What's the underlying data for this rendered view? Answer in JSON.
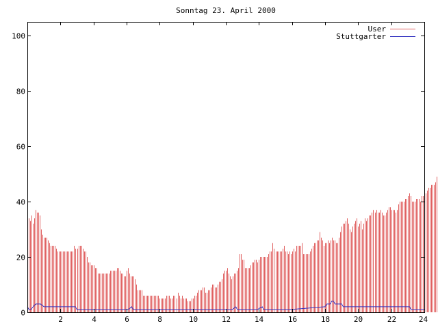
{
  "chart_data": {
    "type": "bar",
    "title": "Sonntag 23. April 2000",
    "xlabel": "",
    "ylabel": "",
    "xlim": [
      0,
      24
    ],
    "ylim": [
      0,
      105
    ],
    "x_ticks": [
      2,
      4,
      6,
      8,
      10,
      12,
      14,
      16,
      18,
      20,
      22,
      24
    ],
    "x_tick_labels": [
      "2",
      "4",
      "6",
      "8",
      "10",
      "12",
      "14",
      "16",
      "18",
      "20",
      "22",
      "24"
    ],
    "y_ticks": [
      0,
      20,
      40,
      60,
      80,
      100
    ],
    "y_tick_labels": [
      "0",
      "20",
      "40",
      "60",
      "80",
      "100"
    ],
    "grid": false,
    "legend_position": "top-right",
    "sample_interval_minutes": 5,
    "series": [
      {
        "name": "User",
        "type": "impulses",
        "color": "#e06060",
        "values": [
          35,
          34,
          33,
          35,
          32,
          34,
          37,
          36,
          36,
          35,
          30,
          28,
          27,
          27,
          27,
          26,
          25,
          24,
          24,
          24,
          24,
          23,
          22,
          22,
          22,
          22,
          22,
          22,
          22,
          22,
          22,
          22,
          22,
          22,
          24,
          23,
          23,
          24,
          24,
          24,
          23,
          22,
          22,
          20,
          18,
          18,
          17,
          17,
          17,
          16,
          16,
          14,
          14,
          14,
          14,
          14,
          14,
          14,
          14,
          14,
          15,
          15,
          15,
          15,
          15,
          16,
          16,
          15,
          14,
          14,
          13,
          13,
          15,
          16,
          14,
          13,
          13,
          13,
          12,
          10,
          8,
          8,
          8,
          8,
          6,
          6,
          6,
          6,
          6,
          6,
          6,
          6,
          6,
          6,
          6,
          6,
          5,
          5,
          5,
          5,
          5,
          6,
          6,
          6,
          5,
          5,
          6,
          6,
          5,
          7,
          6,
          5,
          6,
          5,
          5,
          5,
          4,
          4,
          4,
          5,
          5,
          6,
          6,
          7,
          8,
          8,
          8,
          9,
          9,
          7,
          7,
          8,
          8,
          9,
          10,
          10,
          9,
          9,
          10,
          11,
          11,
          12,
          14,
          15,
          15,
          16,
          14,
          13,
          12,
          13,
          14,
          14,
          15,
          16,
          21,
          21,
          19,
          19,
          16,
          16,
          16,
          16,
          17,
          18,
          18,
          19,
          19,
          18,
          19,
          20,
          20,
          20,
          20,
          20,
          20,
          21,
          22,
          22,
          25,
          23,
          22,
          22,
          22,
          22,
          22,
          23,
          24,
          22,
          22,
          21,
          22,
          21,
          22,
          23,
          22,
          24,
          24,
          24,
          24,
          25,
          21,
          21,
          21,
          21,
          21,
          22,
          23,
          24,
          25,
          25,
          26,
          26,
          29,
          27,
          26,
          24,
          25,
          25,
          26,
          25,
          26,
          27,
          26,
          26,
          25,
          25,
          27,
          29,
          31,
          32,
          32,
          33,
          34,
          32,
          30,
          29,
          31,
          32,
          33,
          34,
          31,
          32,
          33,
          30,
          32,
          34,
          33,
          34,
          35,
          35,
          36,
          37,
          36,
          37,
          36,
          36,
          37,
          36,
          35,
          35,
          36,
          37,
          38,
          38,
          37,
          37,
          37,
          36,
          37,
          39,
          40,
          40,
          40,
          40,
          41,
          41,
          42,
          43,
          42,
          40,
          40,
          40,
          41,
          41,
          41,
          40,
          42,
          42,
          40,
          43,
          44,
          45,
          45,
          46,
          46,
          46,
          47,
          49,
          51,
          54,
          53,
          52,
          52,
          51,
          51,
          53,
          51
        ]
      },
      {
        "name": "Stuttgarter",
        "type": "line",
        "color": "#3030c0",
        "segments": [
          {
            "x": [
              0.0,
              0.1,
              0.2,
              0.35,
              0.5,
              0.8,
              1.0,
              2.9,
              3.0,
              6.0,
              6.1,
              6.3,
              6.4,
              12.3,
              12.4,
              12.6,
              12.7,
              13.8,
              13.9,
              14.2,
              14.3,
              15.8,
              15.9,
              18.0,
              18.1,
              18.3,
              18.4,
              18.5,
              18.6,
              19.0,
              19.1,
              21.0
            ],
            "y": [
              2,
              1,
              1,
              2,
              3,
              3,
              2,
              2,
              1,
              1,
              1,
              2,
              1,
              1,
              1,
              2,
              1,
              1,
              1,
              2,
              1,
              1,
              1,
              2,
              3,
              3,
              4,
              4,
              3,
              3,
              2,
              2
            ]
          },
          {
            "x": [
              21.0,
              23.1,
              23.2,
              24.0
            ],
            "y": [
              2,
              2,
              1,
              1
            ]
          }
        ]
      }
    ]
  }
}
